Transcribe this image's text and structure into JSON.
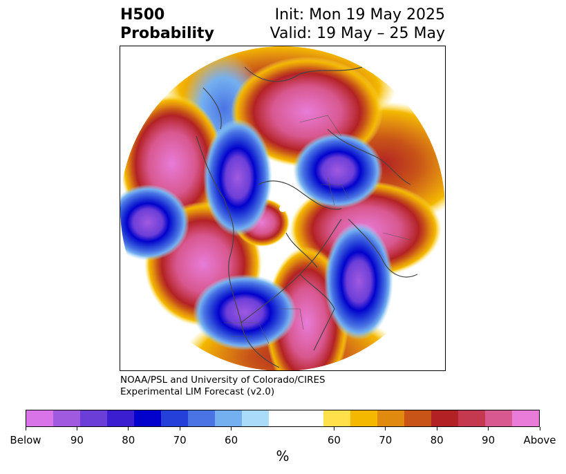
{
  "title": {
    "variable": "H500",
    "kind": "Probability",
    "init": "Init: Mon 19 May 2025",
    "valid": "Valid: 19 May – 25 May"
  },
  "credit": {
    "line1": "NOAA/PSL and University of Colorado/CIRES",
    "line2": "Experimental LIM Forecast (v2.0)"
  },
  "colorbar": {
    "unit": "%",
    "colors": [
      "#d874e8",
      "#a05ae0",
      "#6c3ed8",
      "#3a1ed0",
      "#0202cc",
      "#2440d8",
      "#4a74e4",
      "#74b0f0",
      "#aadcfa",
      "#ffffff",
      "#ffffff",
      "#ffe04a",
      "#f4b800",
      "#e08a10",
      "#c85418",
      "#b22224",
      "#c43850",
      "#d85890",
      "#e87cd8"
    ],
    "ticks": [
      {
        "label": "Below",
        "frac": 0.0
      },
      {
        "label": "90",
        "frac": 0.1
      },
      {
        "label": "80",
        "frac": 0.2
      },
      {
        "label": "70",
        "frac": 0.3
      },
      {
        "label": "60",
        "frac": 0.4
      },
      {
        "label": "60",
        "frac": 0.6
      },
      {
        "label": "70",
        "frac": 0.7
      },
      {
        "label": "80",
        "frac": 0.8
      },
      {
        "label": "90",
        "frac": 0.9
      },
      {
        "label": "Above",
        "frac": 1.0
      }
    ]
  }
}
